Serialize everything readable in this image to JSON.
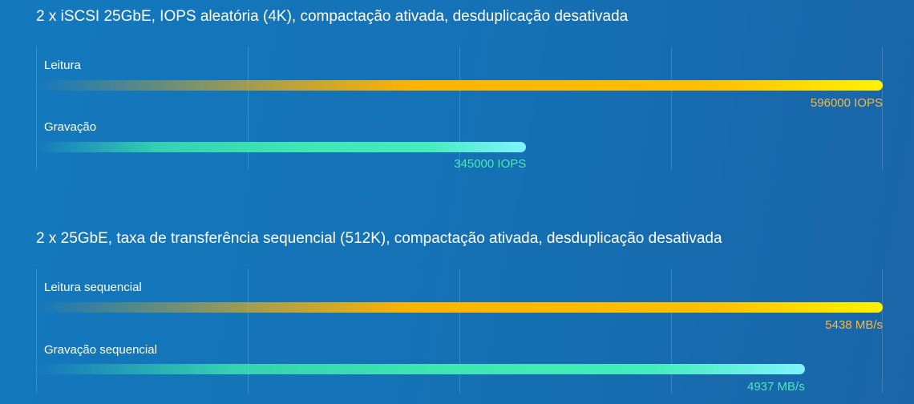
{
  "chart_data": [
    {
      "type": "bar",
      "orientation": "horizontal",
      "title": "2 x iSCSI 25GbE, IOPS aleatória (4K), compactação ativada, desduplicação desativada",
      "categories": [
        "Leitura",
        "Gravação"
      ],
      "values": [
        596000,
        345000
      ],
      "value_labels": [
        "596000 IOPS",
        "345000 IOPS"
      ],
      "xlim": [
        0,
        596000
      ],
      "grid": true,
      "colors": [
        "#ffb400",
        "#3fe8b3"
      ]
    },
    {
      "type": "bar",
      "orientation": "horizontal",
      "title": "2 x 25GbE, taxa de transferência sequencial (512K), compactação ativada, desduplicação desativada",
      "categories": [
        "Leitura sequencial",
        "Gravação sequencial"
      ],
      "values": [
        5438,
        4937
      ],
      "value_labels": [
        "5438 MB/s",
        "4937 MB/s"
      ],
      "xlim": [
        0,
        5438
      ],
      "grid": true,
      "colors": [
        "#ffb400",
        "#3fe8b3"
      ]
    }
  ]
}
